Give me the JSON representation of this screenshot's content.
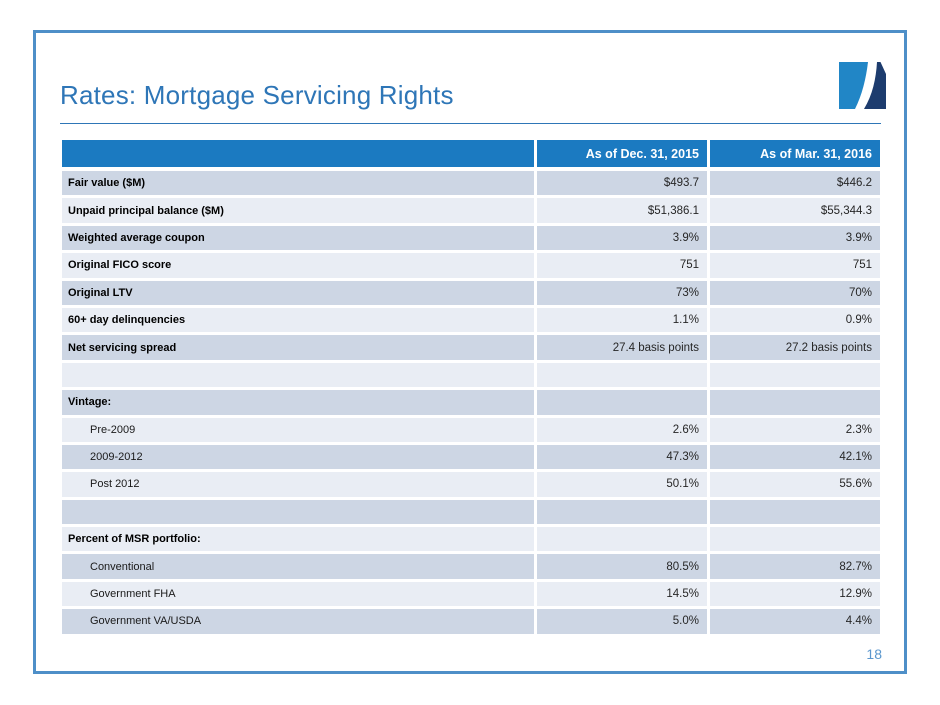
{
  "slide": {
    "title": "Rates: Mortgage Servicing Rights",
    "page_number": "18"
  },
  "colors": {
    "accent_blue": "#2e76b7",
    "table_header_bg": "#1b7ac1",
    "row_dark": "#cdd6e4",
    "row_light": "#e9edf4",
    "frame_border": "#4e8fc8",
    "page_number": "#5b97ce",
    "logo_light_blue": "#2186c6",
    "logo_navy": "#1d3c6e"
  },
  "icons": {
    "logo": "company-logo-swoosh-square"
  },
  "table": {
    "columns": [
      "",
      "As of Dec. 31, 2015",
      "As of Mar. 31, 2016"
    ],
    "rows": [
      {
        "label": "Fair value ($M)",
        "bold": true,
        "indent": false,
        "values": [
          "$493.7",
          "$446.2"
        ]
      },
      {
        "label": "Unpaid principal balance ($M)",
        "bold": true,
        "indent": false,
        "values": [
          "$51,386.1",
          "$55,344.3"
        ]
      },
      {
        "label": "Weighted average coupon",
        "bold": true,
        "indent": false,
        "values": [
          "3.9%",
          "3.9%"
        ]
      },
      {
        "label": "Original FICO score",
        "bold": true,
        "indent": false,
        "values": [
          "751",
          "751"
        ]
      },
      {
        "label": "Original LTV",
        "bold": true,
        "indent": false,
        "values": [
          "73%",
          "70%"
        ]
      },
      {
        "label": "60+ day delinquencies",
        "bold": true,
        "indent": false,
        "values": [
          "1.1%",
          "0.9%"
        ]
      },
      {
        "label": "Net servicing spread",
        "bold": true,
        "indent": false,
        "values": [
          "27.4 basis points",
          "27.2 basis points"
        ]
      },
      {
        "label": "",
        "bold": false,
        "indent": false,
        "values": [
          "",
          ""
        ]
      },
      {
        "label": "Vintage:",
        "bold": true,
        "indent": false,
        "values": [
          "",
          ""
        ]
      },
      {
        "label": "Pre-2009",
        "bold": false,
        "indent": true,
        "values": [
          "2.6%",
          "2.3%"
        ]
      },
      {
        "label": "2009-2012",
        "bold": false,
        "indent": true,
        "values": [
          "47.3%",
          "42.1%"
        ]
      },
      {
        "label": "Post 2012",
        "bold": false,
        "indent": true,
        "values": [
          "50.1%",
          "55.6%"
        ]
      },
      {
        "label": "",
        "bold": false,
        "indent": false,
        "values": [
          "",
          ""
        ]
      },
      {
        "label": "Percent of MSR portfolio:",
        "bold": true,
        "indent": false,
        "values": [
          "",
          ""
        ]
      },
      {
        "label": "Conventional",
        "bold": false,
        "indent": true,
        "values": [
          "80.5%",
          "82.7%"
        ]
      },
      {
        "label": "Government FHA",
        "bold": false,
        "indent": true,
        "values": [
          "14.5%",
          "12.9%"
        ]
      },
      {
        "label": "Government VA/USDA",
        "bold": false,
        "indent": true,
        "values": [
          "5.0%",
          "4.4%"
        ]
      }
    ]
  }
}
